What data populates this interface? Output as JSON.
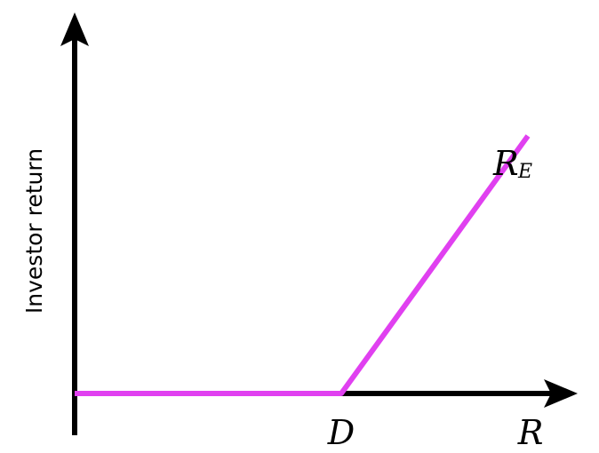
{
  "chart_data": {
    "type": "line",
    "ylabel": "Investor return",
    "xlabel": "R",
    "x_tick_labels": [
      "D"
    ],
    "series": [
      {
        "name": "R",
        "name_subscript": "E",
        "color": "#e040f0",
        "points": [
          {
            "x": 0,
            "y": 0
          },
          {
            "x": 1,
            "y": 0
          },
          {
            "x": 1.7,
            "y": 1
          }
        ]
      }
    ],
    "xlim": [
      0,
      2.1
    ],
    "ylim": [
      0,
      1.5
    ],
    "grid": false,
    "axis_color": "#000000"
  }
}
